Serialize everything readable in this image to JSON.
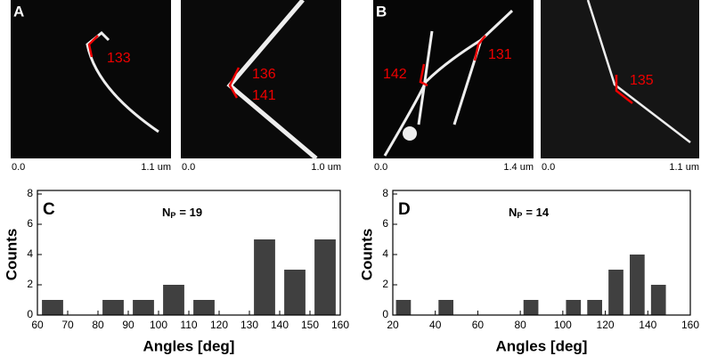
{
  "images": [
    {
      "panel": "A",
      "labels": [
        "133"
      ],
      "scale": [
        "0.0",
        "1.1 um"
      ]
    },
    {
      "labels": [
        "136",
        "141"
      ],
      "scale": [
        "0.0",
        "1.0 um"
      ]
    },
    {
      "panel": "B",
      "labels": [
        "142",
        "131"
      ],
      "scale": [
        "0.0",
        "1.4 um"
      ]
    },
    {
      "labels": [
        "135"
      ],
      "scale": [
        "0.0",
        "1.1 um"
      ]
    }
  ],
  "chart_data": [
    {
      "type": "histogram",
      "panel": "C",
      "annotation": "N",
      "annotation_sub": "P",
      "annotation_rest": "= 19",
      "xlabel": "Angles [deg]",
      "ylabel": "Counts",
      "color": "#404040",
      "bins": [
        60,
        70,
        80,
        90,
        100,
        110,
        120,
        130,
        140,
        150,
        160
      ],
      "counts": [
        1,
        0,
        1,
        1,
        2,
        1,
        0,
        5,
        3,
        5
      ],
      "xlim": [
        60,
        160
      ],
      "xticks": [
        60,
        70,
        80,
        90,
        100,
        110,
        120,
        130,
        140,
        150,
        160
      ],
      "ylim": [
        0,
        8
      ],
      "yticks": [
        0,
        2,
        4,
        6,
        8
      ]
    },
    {
      "type": "histogram",
      "panel": "D",
      "annotation": "N",
      "annotation_sub": "P",
      "annotation_rest": "= 14",
      "xlabel": "Angles [deg]",
      "ylabel": "Counts",
      "color": "#404040",
      "bins": [
        20,
        30,
        40,
        50,
        60,
        70,
        80,
        90,
        100,
        110,
        120,
        130,
        140,
        150
      ],
      "counts": [
        1,
        0,
        1,
        0,
        0,
        0,
        1,
        0,
        1,
        1,
        3,
        4,
        2
      ],
      "xlim": [
        20,
        160
      ],
      "xticks": [
        20,
        40,
        60,
        80,
        100,
        120,
        140,
        160
      ],
      "ylim": [
        0,
        8
      ],
      "yticks": [
        0,
        2,
        4,
        6,
        8
      ]
    }
  ]
}
